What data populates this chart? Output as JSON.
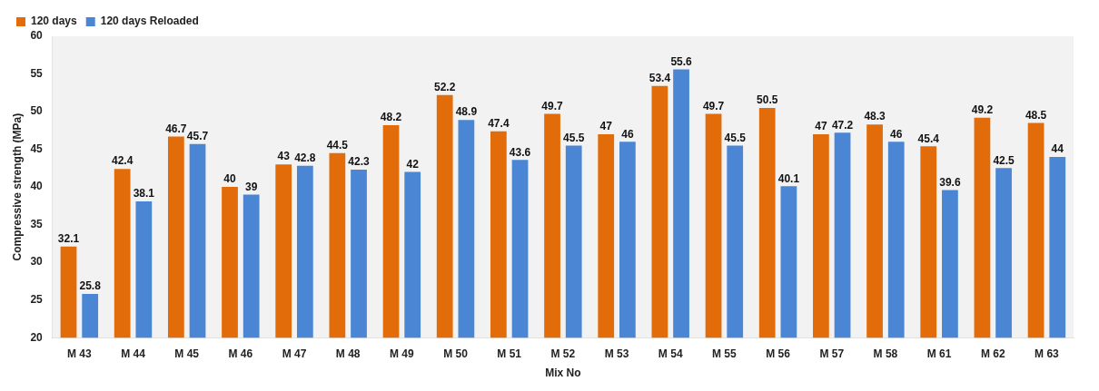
{
  "chart_data": {
    "type": "bar",
    "xlabel": "Mix No",
    "ylabel": "Compressive strength (MPa)",
    "categories": [
      "M 43",
      "M 44",
      "M 45",
      "M 46",
      "M 47",
      "M 48",
      "M 49",
      "M 50",
      "M 51",
      "M 52",
      "M 53",
      "M 54",
      "M 55",
      "M 56",
      "M 57",
      "M 58",
      "M 61",
      "M 62",
      "M 63"
    ],
    "series": [
      {
        "name": "120 days",
        "color": "#e36c0a",
        "values": [
          32.1,
          42.4,
          46.7,
          40,
          43,
          44.5,
          48.2,
          52.2,
          47.4,
          49.7,
          47,
          53.4,
          49.7,
          50.5,
          47,
          48.3,
          45.4,
          49.2,
          48.5
        ]
      },
      {
        "name": "120 days Reloaded",
        "color": "#4a86d4",
        "values": [
          25.8,
          38.1,
          45.7,
          39,
          42.8,
          42.3,
          42,
          48.9,
          43.6,
          45.5,
          46,
          55.6,
          45.5,
          40.1,
          47.2,
          46,
          39.6,
          42.5,
          44
        ]
      }
    ],
    "ylim": [
      20,
      60
    ],
    "yticks": [
      20,
      25,
      30,
      35,
      40,
      45,
      50,
      55,
      60
    ],
    "grid": false,
    "legend": "top left",
    "data_labels": true
  }
}
